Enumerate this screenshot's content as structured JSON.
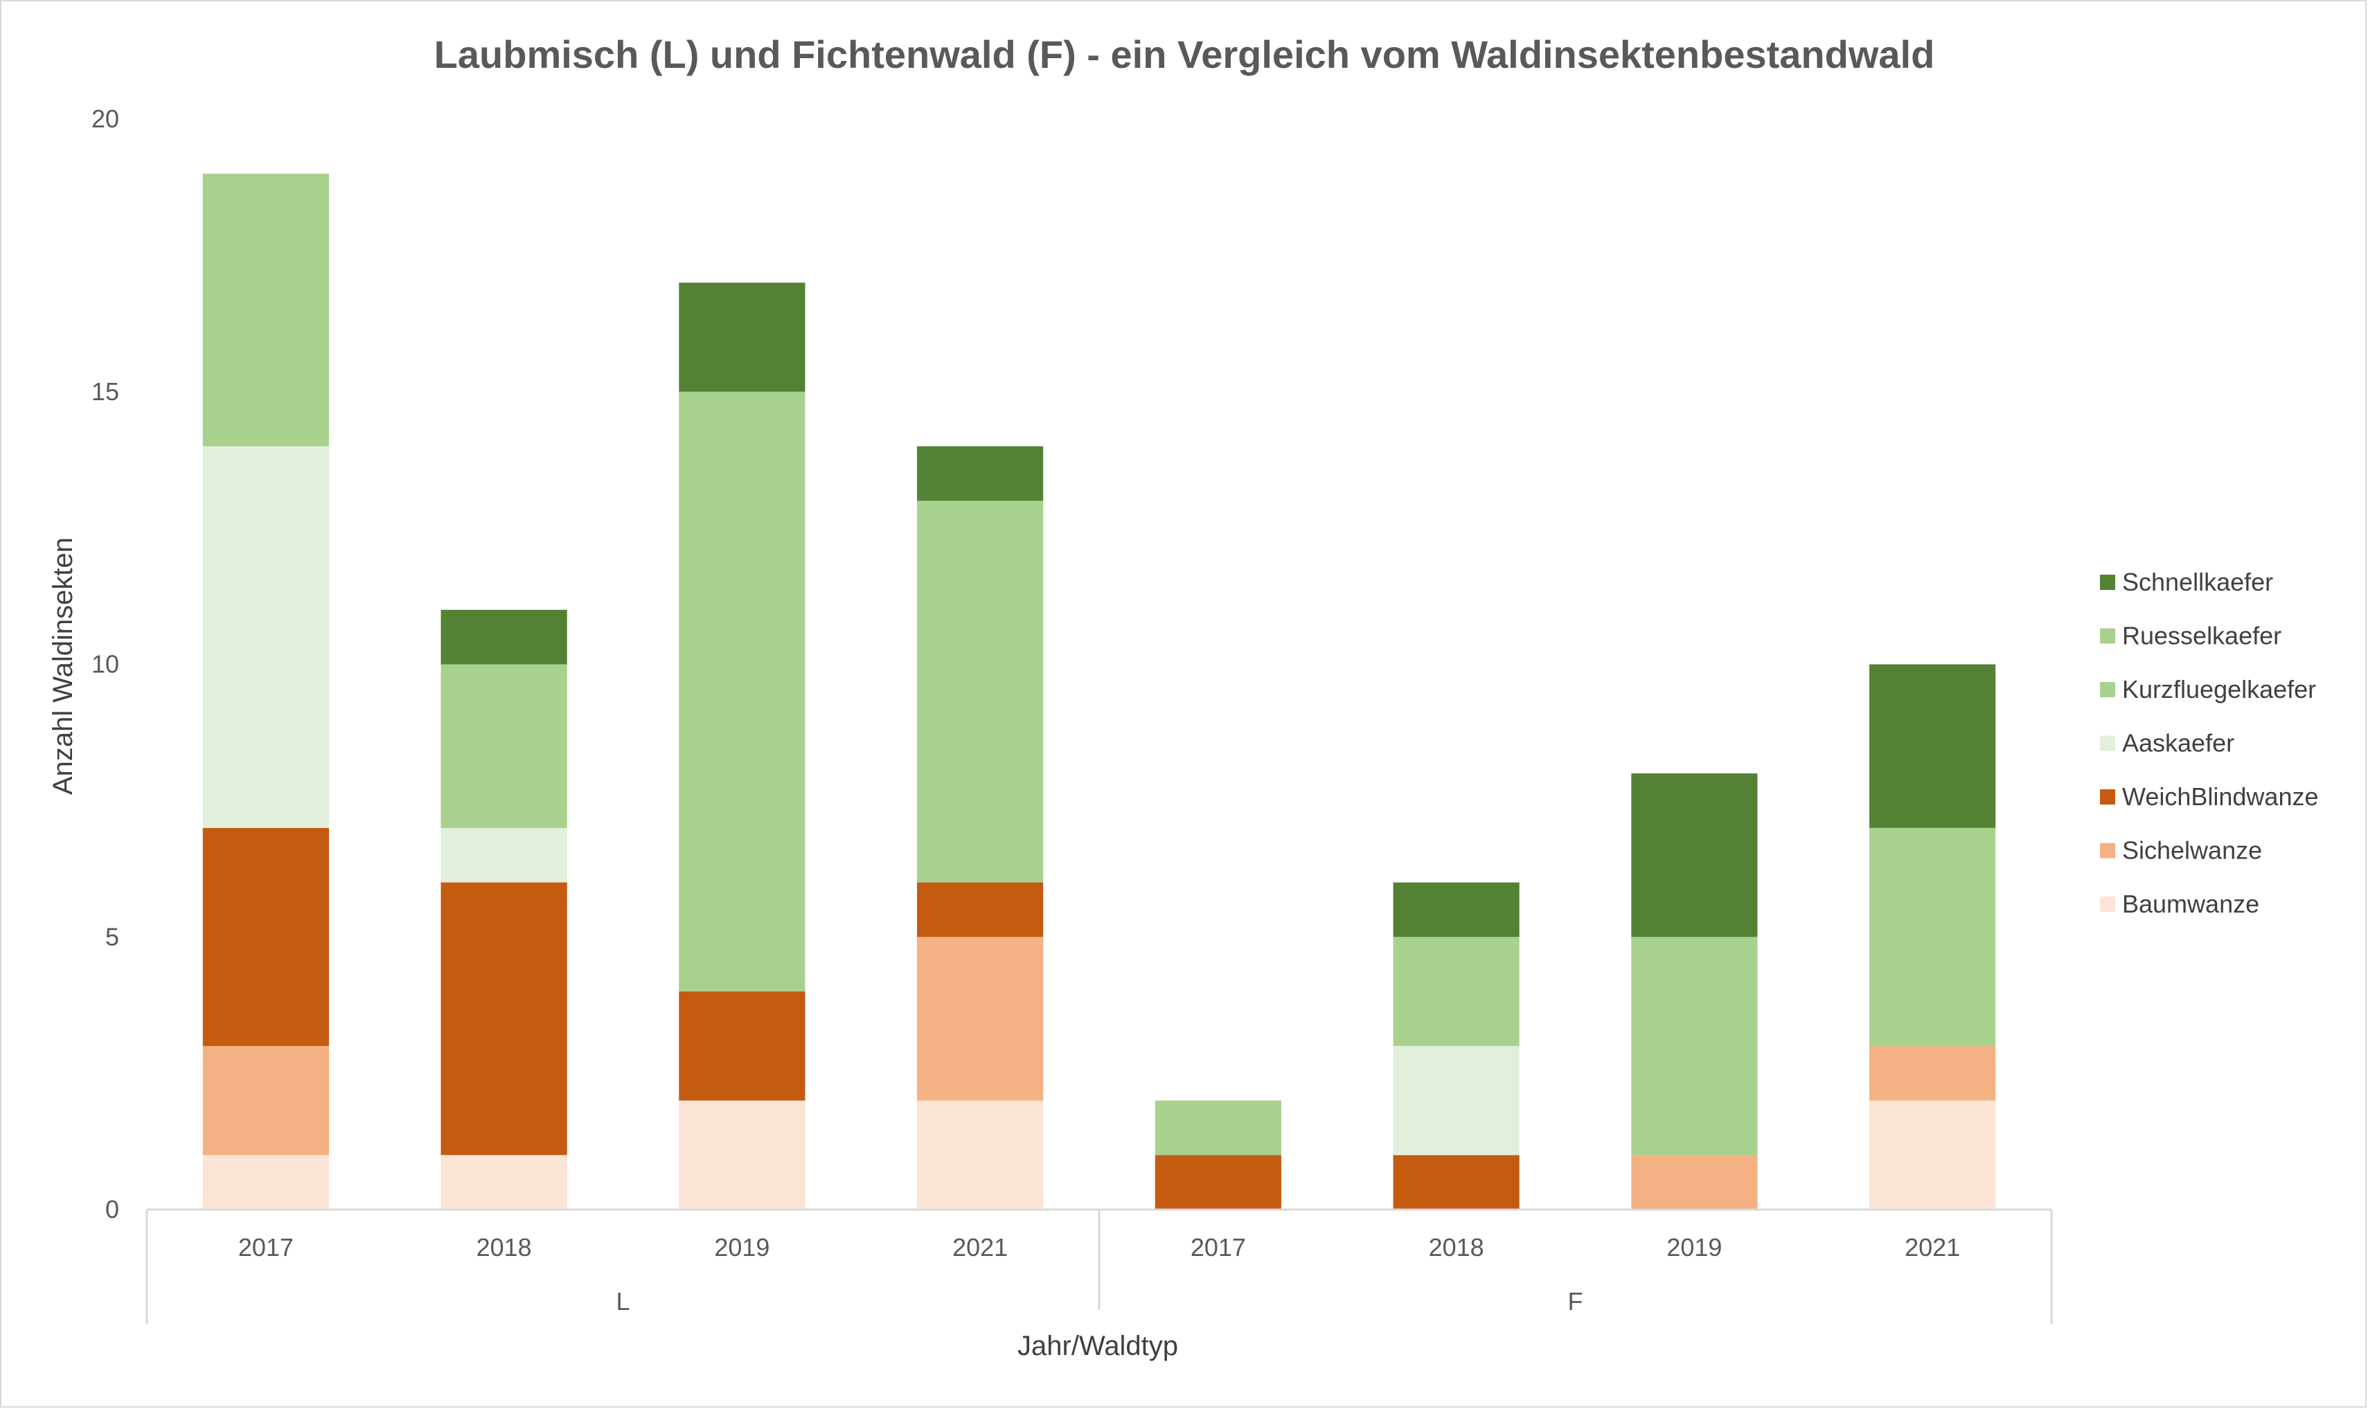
{
  "chart_data": {
    "type": "bar",
    "stacked": true,
    "title": "Laubmisch (L) und Fichtenwald (F) - ein Vergleich vom Waldinsektenbestandwald",
    "xlabel": "Jahr/Waldtyp",
    "ylabel": "Anzahl Waldinsekten",
    "ylim": [
      0,
      20
    ],
    "yticks": [
      0,
      5,
      10,
      15,
      20
    ],
    "grid": false,
    "legend_position": "right",
    "groups": [
      {
        "label": "L",
        "categories": [
          "2017",
          "2018",
          "2019",
          "2021"
        ]
      },
      {
        "label": "F",
        "categories": [
          "2017",
          "2018",
          "2019",
          "2021"
        ]
      }
    ],
    "categories": [
      "2017",
      "2018",
      "2019",
      "2021",
      "2017",
      "2018",
      "2019",
      "2021"
    ],
    "series": [
      {
        "name": "Baumwanze",
        "color": "#FCE4D6",
        "values": [
          1,
          1,
          2,
          2,
          0,
          0,
          0,
          2
        ]
      },
      {
        "name": "Sichelwanze",
        "color": "#F4B183",
        "values": [
          2,
          0,
          0,
          3,
          0,
          0,
          1,
          1
        ]
      },
      {
        "name": "WeichBlindwanze",
        "color": "#C55A11",
        "values": [
          4,
          5,
          2,
          1,
          1,
          1,
          0,
          0
        ]
      },
      {
        "name": "Aaskaefer",
        "color": "#E2EFDA",
        "values": [
          7,
          1,
          0,
          0,
          0,
          2,
          0,
          0
        ]
      },
      {
        "name": "Kurzfluegelkaefer",
        "color": "#A9D18E",
        "values": [
          5,
          3,
          11,
          7,
          1,
          2,
          4,
          4
        ]
      },
      {
        "name": "Ruesselkaefer",
        "color": "#A9D18E",
        "values": [
          0,
          0,
          0,
          0,
          0,
          0,
          0,
          0
        ]
      },
      {
        "name": "Schnellkaefer",
        "color": "#548235",
        "values": [
          0,
          1,
          2,
          1,
          0,
          1,
          3,
          3
        ]
      }
    ],
    "legend_order": [
      "Schnellkaefer",
      "Ruesselkaefer",
      "Kurzfluegelkaefer",
      "Aaskaefer",
      "WeichBlindwanze",
      "Sichelwanze",
      "Baumwanze"
    ]
  }
}
